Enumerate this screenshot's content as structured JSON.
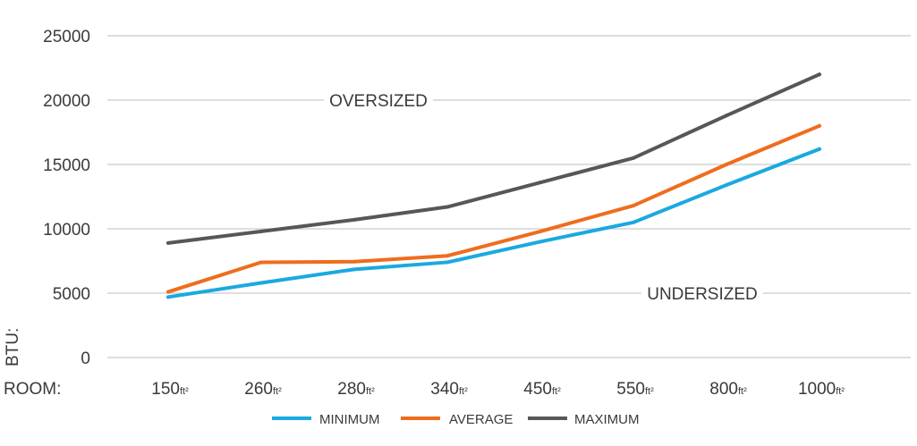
{
  "chart_data": {
    "type": "line",
    "categories": [
      "150",
      "260",
      "280",
      "340",
      "450",
      "550",
      "800",
      "1000"
    ],
    "category_unit": "ft²",
    "ylabel": "BTU:",
    "xlabel": "ROOM:",
    "ylim": [
      0,
      25000
    ],
    "yticks": [
      0,
      5000,
      10000,
      15000,
      20000,
      25000
    ],
    "grid": true,
    "legend_position": "bottom",
    "annotations": [
      "OVERSIZED",
      "UNDERSIZED"
    ],
    "series": [
      {
        "name": "MINIMUM",
        "color": "#1aa9e0",
        "values": [
          4700,
          5800,
          6850,
          7400,
          9000,
          10500,
          13400,
          16200
        ]
      },
      {
        "name": "AVERAGE",
        "color": "#ee6d1e",
        "values": [
          5100,
          7400,
          7450,
          7900,
          9800,
          11800,
          15000,
          18000
        ]
      },
      {
        "name": "MAXIMUM",
        "color": "#555759",
        "values": [
          8900,
          9800,
          10700,
          11700,
          13600,
          15500,
          18800,
          22000
        ]
      }
    ]
  },
  "colors": {
    "grid": "#c9c9c9",
    "text": "#3a3a3a"
  }
}
